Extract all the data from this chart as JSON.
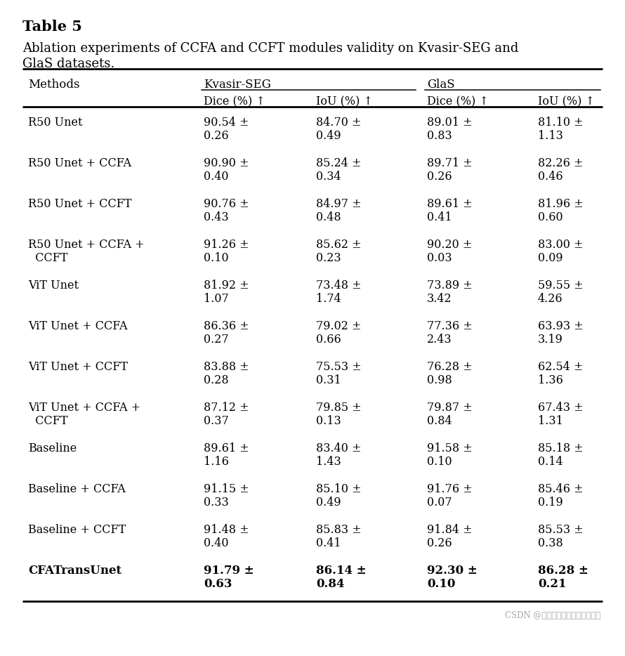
{
  "title": "Table 5",
  "subtitle1": "Ablation experiments of CCFA and CCFT modules validity on Kvasir-SEG and",
  "subtitle2": "GlaS datasets.",
  "watermark": "CSDN @医学分割哇哇哇哇哇哇哇哇",
  "col_headers_sub": [
    "",
    "Dice (%) ↑",
    "IoU (%) ↑",
    "Dice (%) ↑",
    "IoU (%) ↑"
  ],
  "rows": [
    {
      "method": "R50 Unet",
      "method2": "",
      "bold": false,
      "vals": [
        [
          "90.54 ±",
          "0.26"
        ],
        [
          "84.70 ±",
          "0.49"
        ],
        [
          "89.01 ±",
          "0.83"
        ],
        [
          "81.10 ±",
          "1.13"
        ]
      ]
    },
    {
      "method": "R50 Unet + CCFA",
      "method2": "",
      "bold": false,
      "vals": [
        [
          "90.90 ±",
          "0.40"
        ],
        [
          "85.24 ±",
          "0.34"
        ],
        [
          "89.71 ±",
          "0.26"
        ],
        [
          "82.26 ±",
          "0.46"
        ]
      ]
    },
    {
      "method": "R50 Unet + CCFT",
      "method2": "",
      "bold": false,
      "vals": [
        [
          "90.76 ±",
          "0.43"
        ],
        [
          "84.97 ±",
          "0.48"
        ],
        [
          "89.61 ±",
          "0.41"
        ],
        [
          "81.96 ±",
          "0.60"
        ]
      ]
    },
    {
      "method": "R50 Unet + CCFA +",
      "method2": "  CCFT",
      "bold": false,
      "vals": [
        [
          "91.26 ±",
          "0.10"
        ],
        [
          "85.62 ±",
          "0.23"
        ],
        [
          "90.20 ±",
          "0.03"
        ],
        [
          "83.00 ±",
          "0.09"
        ]
      ]
    },
    {
      "method": "ViT Unet",
      "method2": "",
      "bold": false,
      "vals": [
        [
          "81.92 ±",
          "1.07"
        ],
        [
          "73.48 ±",
          "1.74"
        ],
        [
          "73.89 ±",
          "3.42"
        ],
        [
          "59.55 ±",
          "4.26"
        ]
      ]
    },
    {
      "method": "ViT Unet + CCFA",
      "method2": "",
      "bold": false,
      "vals": [
        [
          "86.36 ±",
          "0.27"
        ],
        [
          "79.02 ±",
          "0.66"
        ],
        [
          "77.36 ±",
          "2.43"
        ],
        [
          "63.93 ±",
          "3.19"
        ]
      ]
    },
    {
      "method": "ViT Unet + CCFT",
      "method2": "",
      "bold": false,
      "vals": [
        [
          "83.88 ±",
          "0.28"
        ],
        [
          "75.53 ±",
          "0.31"
        ],
        [
          "76.28 ±",
          "0.98"
        ],
        [
          "62.54 ±",
          "1.36"
        ]
      ]
    },
    {
      "method": "ViT Unet + CCFA +",
      "method2": "  CCFT",
      "bold": false,
      "vals": [
        [
          "87.12 ±",
          "0.37"
        ],
        [
          "79.85 ±",
          "0.13"
        ],
        [
          "79.87 ±",
          "0.84"
        ],
        [
          "67.43 ±",
          "1.31"
        ]
      ]
    },
    {
      "method": "Baseline",
      "method2": "",
      "bold": false,
      "vals": [
        [
          "89.61 ±",
          "1.16"
        ],
        [
          "83.40 ±",
          "1.43"
        ],
        [
          "91.58 ±",
          "0.10"
        ],
        [
          "85.18 ±",
          "0.14"
        ]
      ]
    },
    {
      "method": "Baseline + CCFA",
      "method2": "",
      "bold": false,
      "vals": [
        [
          "91.15 ±",
          "0.33"
        ],
        [
          "85.10 ±",
          "0.49"
        ],
        [
          "91.76 ±",
          "0.07"
        ],
        [
          "85.46 ±",
          "0.19"
        ]
      ]
    },
    {
      "method": "Baseline + CCFT",
      "method2": "",
      "bold": false,
      "vals": [
        [
          "91.48 ±",
          "0.40"
        ],
        [
          "85.83 ±",
          "0.41"
        ],
        [
          "91.84 ±",
          "0.26"
        ],
        [
          "85.53 ±",
          "0.38"
        ]
      ]
    },
    {
      "method": "CFATransUnet",
      "method2": "",
      "bold": true,
      "vals": [
        [
          "91.79 ±",
          "0.63"
        ],
        [
          "86.14 ±",
          "0.84"
        ],
        [
          "92.30 ±",
          "0.10"
        ],
        [
          "86.28 ±",
          "0.21"
        ]
      ]
    }
  ],
  "bg_color": "#ffffff",
  "text_color": "#000000",
  "font_family": "DejaVu Serif"
}
